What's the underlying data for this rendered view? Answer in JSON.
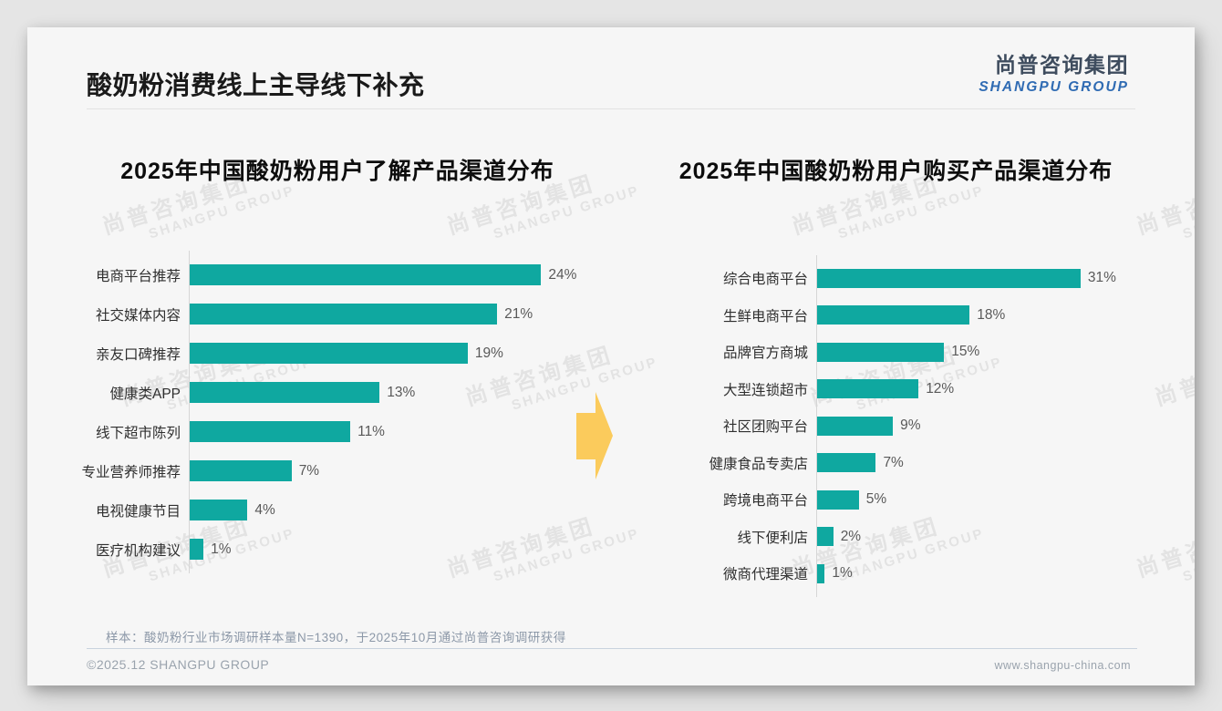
{
  "slide": {
    "title": "酸奶粉消费线上主导线下补充"
  },
  "logo": {
    "name_cn": "尚普咨询集团",
    "name_en": "SHANGPU GROUP"
  },
  "watermark": {
    "line1": "尚普咨询集团",
    "line2": "SHANGPU GROUP"
  },
  "chart_data": [
    {
      "type": "bar",
      "orientation": "horizontal",
      "title": "2025年中国酸奶粉用户了解产品渠道分布",
      "categories": [
        "电商平台推荐",
        "社交媒体内容",
        "亲友口碑推荐",
        "健康类APP",
        "线下超市陈列",
        "专业营养师推荐",
        "电视健康节目",
        "医疗机构建议"
      ],
      "values": [
        24,
        21,
        19,
        13,
        11,
        7,
        4,
        1
      ],
      "value_suffix": "%",
      "xlim": [
        0,
        26
      ],
      "bar_color": "#0fa8a0",
      "grid": false,
      "legend": false
    },
    {
      "type": "bar",
      "orientation": "horizontal",
      "title": "2025年中国酸奶粉用户购买产品渠道分布",
      "categories": [
        "综合电商平台",
        "生鲜电商平台",
        "品牌官方商城",
        "大型连锁超市",
        "社区团购平台",
        "健康食品专卖店",
        "跨境电商平台",
        "线下便利店",
        "微商代理渠道"
      ],
      "values": [
        31,
        18,
        15,
        12,
        9,
        7,
        5,
        2,
        1
      ],
      "value_suffix": "%",
      "xlim": [
        0,
        34
      ],
      "bar_color": "#0fa8a0",
      "grid": false,
      "legend": false
    }
  ],
  "colors": {
    "bar_teal": "#0fa8a0",
    "arrow_yellow": "#fbcb5c",
    "logo_blue": "#2f6bb3",
    "logo_dark": "#3e4c5e"
  },
  "footer": {
    "note": "样本：酸奶粉行业市场调研样本量N=1390，于2025年10月通过尚普咨询调研获得",
    "copyright": "©2025.12 SHANGPU GROUP",
    "website": "www.shangpu-china.com"
  }
}
